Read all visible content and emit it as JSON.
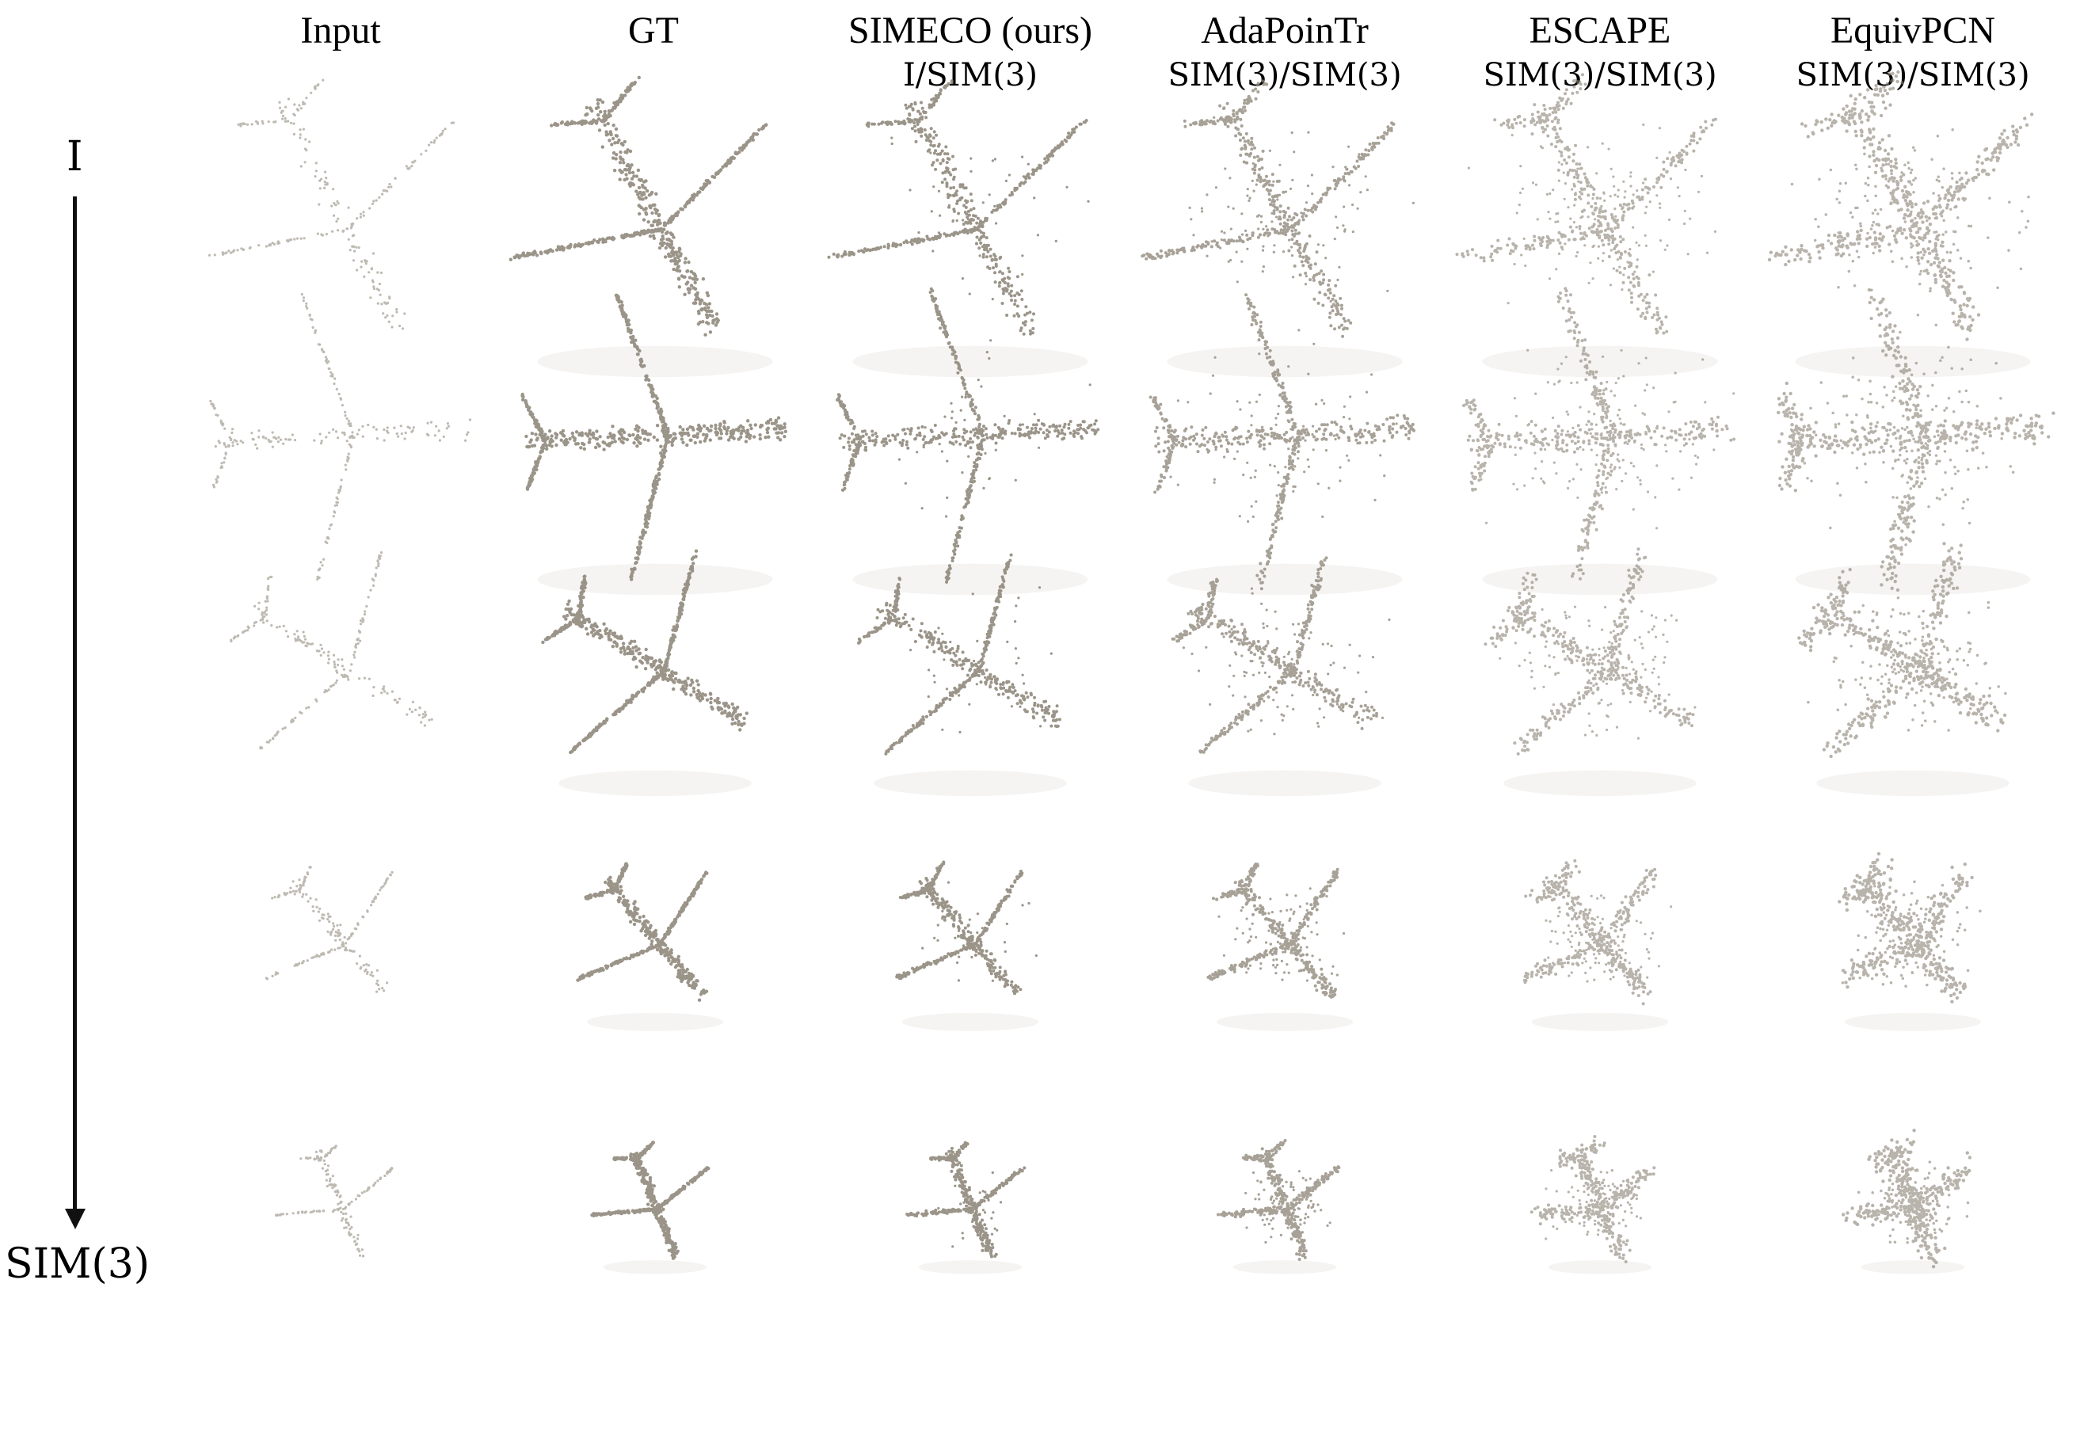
{
  "columns": [
    {
      "title": "Input",
      "subtitle": ""
    },
    {
      "title": "GT",
      "subtitle": ""
    },
    {
      "title": "SIMECO (ours)",
      "subtitle": "I/SIM(3)"
    },
    {
      "title": "AdaPoinTr",
      "subtitle": "SIM(3)/SIM(3)"
    },
    {
      "title": "ESCAPE",
      "subtitle": "SIM(3)/SIM(3)"
    },
    {
      "title": "EquivPCN",
      "subtitle": "SIM(3)/SIM(3)"
    }
  ],
  "rows_axis": {
    "top_label": "I",
    "bottom_label": "SIM(3)"
  },
  "point_color": "#8a8275",
  "shadow_color": "#e8e6e3"
}
